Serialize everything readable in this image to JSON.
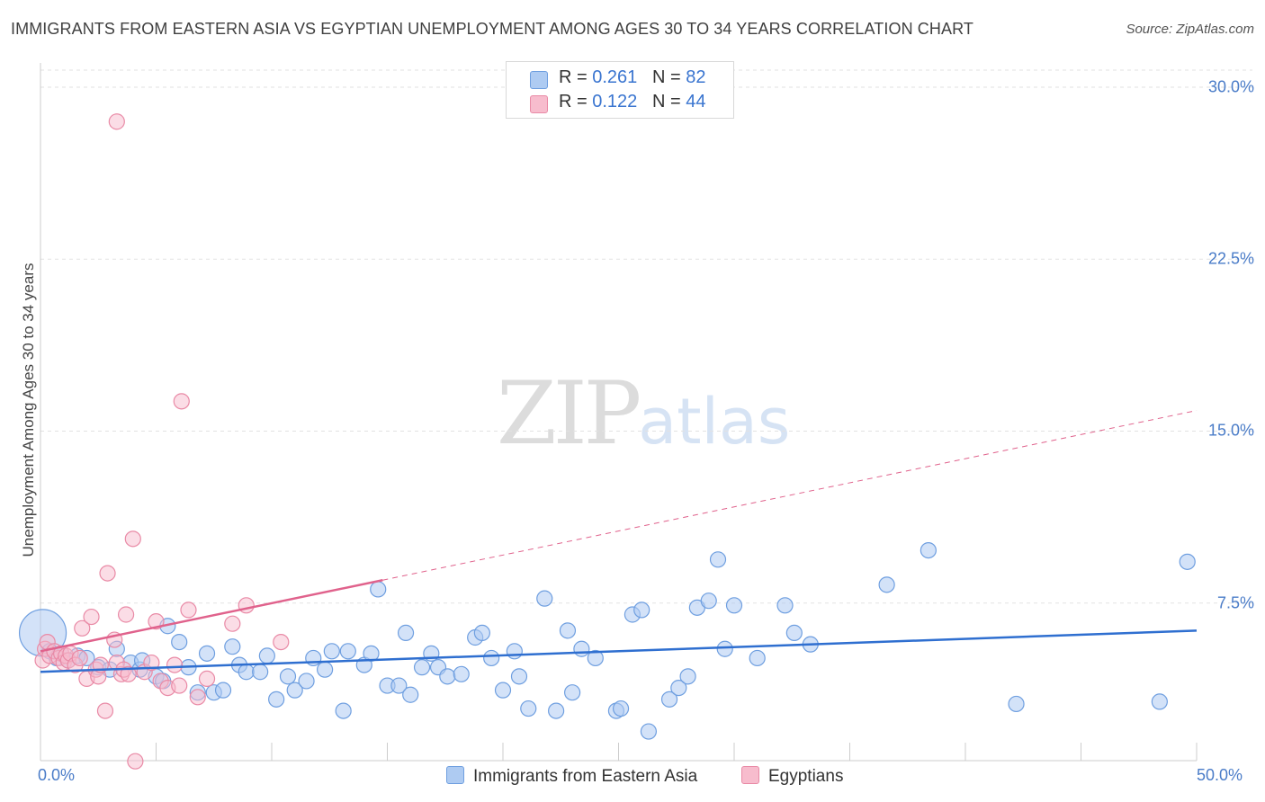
{
  "header": {
    "title": "IMMIGRANTS FROM EASTERN ASIA VS EGYPTIAN UNEMPLOYMENT AMONG AGES 30 TO 34 YEARS CORRELATION CHART",
    "source": "Source: ZipAtlas.com"
  },
  "watermark": {
    "zip": "ZIP",
    "atlas": "atlas"
  },
  "legend": {
    "series1": {
      "r_label": "R = ",
      "r_value": "0.261",
      "n_label": "N = ",
      "n_value": "82"
    },
    "series2": {
      "r_label": "R = ",
      "r_value": "0.122",
      "n_label": "N = ",
      "n_value": "44"
    }
  },
  "bottom_legend": {
    "series1": "Immigrants from Eastern Asia",
    "series2": "Egyptians"
  },
  "colors": {
    "blue_fill": "#aecbf2",
    "blue_stroke": "#6f9fe0",
    "blue_line": "#2f6fd0",
    "pink_fill": "#f7bccd",
    "pink_stroke": "#e98aa6",
    "pink_line": "#e0628c",
    "grid": "#e2e2e2",
    "tick_text": "#4a7cc8"
  },
  "chart_data": {
    "type": "scatter",
    "title": "IMMIGRANTS FROM EASTERN ASIA VS EGYPTIAN UNEMPLOYMENT AMONG AGES 30 TO 34 YEARS CORRELATION CHART",
    "xlabel": "",
    "ylabel": "Unemployment Among Ages 30 to 34 years",
    "xlim": [
      0,
      50
    ],
    "ylim": [
      0,
      31
    ],
    "x_tick_labels": [
      "0.0%",
      "50.0%"
    ],
    "y_ticks": [
      7.5,
      15.0,
      22.5,
      30.0
    ],
    "y_tick_labels": [
      "7.5%",
      "15.0%",
      "22.5%",
      "30.0%"
    ],
    "grid": true,
    "legend_position": "top-center",
    "series": [
      {
        "name": "Immigrants from Eastern Asia",
        "R": 0.261,
        "N": 82,
        "trend": {
          "x0": 0,
          "y0": 4.5,
          "x1": 50,
          "y1": 6.3,
          "dashed_to": null
        },
        "points": [
          [
            0.1,
            6.2
          ],
          [
            0.4,
            5.4
          ],
          [
            0.7,
            5.1
          ],
          [
            0.9,
            5.3
          ],
          [
            1.2,
            5.0
          ],
          [
            1.6,
            5.2
          ],
          [
            2.0,
            5.1
          ],
          [
            2.5,
            4.7
          ],
          [
            3.0,
            4.6
          ],
          [
            3.3,
            5.5
          ],
          [
            3.9,
            4.9
          ],
          [
            4.3,
            4.6
          ],
          [
            4.4,
            5.0
          ],
          [
            5.0,
            4.3
          ],
          [
            5.3,
            4.1
          ],
          [
            5.5,
            6.5
          ],
          [
            6.0,
            5.8
          ],
          [
            6.4,
            4.7
          ],
          [
            6.8,
            3.6
          ],
          [
            7.2,
            5.3
          ],
          [
            7.5,
            3.6
          ],
          [
            7.9,
            3.7
          ],
          [
            8.3,
            5.6
          ],
          [
            8.6,
            4.8
          ],
          [
            8.9,
            4.5
          ],
          [
            9.5,
            4.5
          ],
          [
            9.8,
            5.2
          ],
          [
            10.2,
            3.3
          ],
          [
            10.7,
            4.3
          ],
          [
            11.0,
            3.7
          ],
          [
            11.5,
            4.1
          ],
          [
            11.8,
            5.1
          ],
          [
            12.3,
            4.6
          ],
          [
            12.6,
            5.4
          ],
          [
            13.1,
            2.8
          ],
          [
            13.3,
            5.4
          ],
          [
            14.0,
            4.8
          ],
          [
            14.3,
            5.3
          ],
          [
            14.6,
            8.1
          ],
          [
            15.0,
            3.9
          ],
          [
            15.5,
            3.9
          ],
          [
            15.8,
            6.2
          ],
          [
            16.0,
            3.5
          ],
          [
            16.5,
            4.7
          ],
          [
            16.9,
            5.3
          ],
          [
            17.2,
            4.7
          ],
          [
            17.6,
            4.3
          ],
          [
            18.2,
            4.4
          ],
          [
            18.8,
            6.0
          ],
          [
            19.1,
            6.2
          ],
          [
            19.5,
            5.1
          ],
          [
            20.0,
            3.7
          ],
          [
            20.5,
            5.4
          ],
          [
            20.7,
            4.3
          ],
          [
            21.1,
            2.9
          ],
          [
            21.8,
            7.7
          ],
          [
            22.3,
            2.8
          ],
          [
            22.8,
            6.3
          ],
          [
            23.0,
            3.6
          ],
          [
            23.4,
            5.5
          ],
          [
            24.0,
            5.1
          ],
          [
            24.9,
            2.8
          ],
          [
            25.1,
            2.9
          ],
          [
            25.6,
            7.0
          ],
          [
            26.0,
            7.2
          ],
          [
            26.3,
            1.9
          ],
          [
            27.2,
            3.3
          ],
          [
            27.6,
            3.8
          ],
          [
            28.0,
            4.3
          ],
          [
            28.4,
            7.3
          ],
          [
            28.9,
            7.6
          ],
          [
            29.3,
            9.4
          ],
          [
            29.6,
            5.5
          ],
          [
            30.0,
            7.4
          ],
          [
            31.0,
            5.1
          ],
          [
            32.2,
            7.4
          ],
          [
            32.6,
            6.2
          ],
          [
            33.3,
            5.7
          ],
          [
            36.6,
            8.3
          ],
          [
            38.4,
            9.8
          ],
          [
            42.2,
            3.1
          ],
          [
            48.4,
            3.2
          ],
          [
            49.6,
            9.3
          ]
        ]
      },
      {
        "name": "Egyptians",
        "R": 0.122,
        "N": 44,
        "trend": {
          "x0": 0,
          "y0": 5.4,
          "x1": 14.8,
          "y1": 8.5,
          "dashed_to": [
            50,
            15.9
          ]
        },
        "points": [
          [
            0.1,
            5.0
          ],
          [
            0.2,
            5.5
          ],
          [
            0.3,
            5.8
          ],
          [
            0.4,
            5.2
          ],
          [
            0.6,
            5.4
          ],
          [
            0.8,
            5.1
          ],
          [
            0.9,
            5.3
          ],
          [
            1.0,
            4.9
          ],
          [
            1.1,
            5.2
          ],
          [
            1.2,
            5.0
          ],
          [
            1.3,
            5.3
          ],
          [
            1.5,
            4.8
          ],
          [
            1.7,
            5.1
          ],
          [
            1.8,
            6.4
          ],
          [
            2.0,
            4.2
          ],
          [
            2.2,
            6.9
          ],
          [
            2.4,
            4.6
          ],
          [
            2.5,
            4.3
          ],
          [
            2.6,
            4.8
          ],
          [
            2.8,
            2.8
          ],
          [
            2.9,
            8.8
          ],
          [
            3.2,
            5.9
          ],
          [
            3.3,
            4.9
          ],
          [
            3.5,
            4.4
          ],
          [
            3.6,
            4.6
          ],
          [
            3.7,
            7.0
          ],
          [
            3.8,
            4.4
          ],
          [
            4.0,
            10.3
          ],
          [
            4.5,
            4.5
          ],
          [
            4.8,
            4.9
          ],
          [
            5.0,
            6.7
          ],
          [
            5.2,
            4.1
          ],
          [
            5.5,
            3.8
          ],
          [
            5.8,
            4.8
          ],
          [
            6.0,
            3.9
          ],
          [
            6.4,
            7.2
          ],
          [
            6.8,
            3.4
          ],
          [
            7.2,
            4.2
          ],
          [
            8.3,
            6.6
          ],
          [
            8.9,
            7.4
          ],
          [
            10.4,
            5.8
          ],
          [
            6.1,
            16.3
          ],
          [
            3.3,
            28.5
          ],
          [
            4.1,
            0.6
          ]
        ]
      }
    ]
  }
}
